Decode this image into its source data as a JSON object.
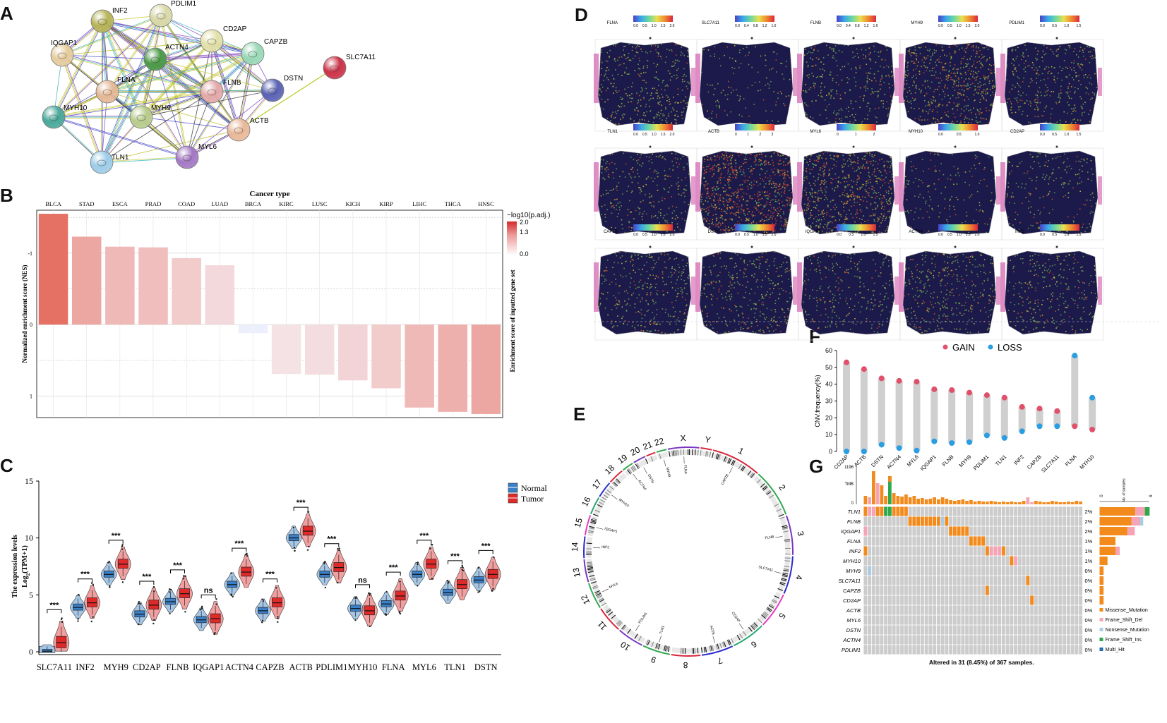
{
  "panels": {
    "A": "A",
    "B": "B",
    "C": "C",
    "D": "D",
    "E": "E",
    "F": "F",
    "G": "G"
  },
  "panel_a": {
    "nodes": [
      {
        "id": "INF2",
        "color": "#b8b45a"
      },
      {
        "id": "PDLIM1",
        "color": "#d8d8a8"
      },
      {
        "id": "CD2AP",
        "color": "#e2e0a8"
      },
      {
        "id": "IQGAP1",
        "color": "#e6cc9e"
      },
      {
        "id": "ACTN4",
        "color": "#4c9a48"
      },
      {
        "id": "CAPZB",
        "color": "#9ad8b8"
      },
      {
        "id": "SLC7A11",
        "color": "#cc3348"
      },
      {
        "id": "FLNA",
        "color": "#e4b896"
      },
      {
        "id": "FLNB",
        "color": "#e4a8a8"
      },
      {
        "id": "DSTN",
        "color": "#5a62b4"
      },
      {
        "id": "MYH10",
        "color": "#4aa89a"
      },
      {
        "id": "MYH9",
        "color": "#b8cc8c"
      },
      {
        "id": "ACTB",
        "color": "#e8b898"
      },
      {
        "id": "MYL6",
        "color": "#a478c4"
      },
      {
        "id": "TLN1",
        "color": "#9ccce8"
      }
    ]
  },
  "chart_data": [
    {
      "panel": "B",
      "type": "bar",
      "title": "Cancer type",
      "ylabel": "Normalized  enrichment score (NES)",
      "right_label": "Enrichment score of inputted gene set",
      "legend_title": "−log10(p.adj.)",
      "legend_ticks": [
        "2.0",
        "1.3",
        "0.0"
      ],
      "categories": [
        "BLCA",
        "STAD",
        "ESCA",
        "PRAD",
        "COAD",
        "LUAD",
        "BRCA",
        "KIRC",
        "LUSC",
        "KICH",
        "KIRP",
        "LIHC",
        "THCA",
        "HNSC"
      ],
      "values": [
        -1.55,
        -1.23,
        -1.09,
        -1.08,
        -0.93,
        -0.83,
        0.12,
        0.69,
        0.7,
        0.78,
        0.89,
        1.16,
        1.22,
        1.25
      ],
      "color_values": [
        1.5,
        0.9,
        0.7,
        0.65,
        0.5,
        0.35,
        0.05,
        0.25,
        0.3,
        0.4,
        0.5,
        0.7,
        0.8,
        0.9
      ],
      "ytick_labels": [
        "-1",
        "0",
        "1"
      ],
      "ytick_values": [
        -1,
        0,
        1
      ],
      "ylim": [
        -1.6,
        1.3
      ]
    },
    {
      "panel": "C",
      "type": "violin-box",
      "ylabel": "The expression levels",
      "ylabel2": "Log",
      "ylabel2_sub": "2",
      "ylabel2_tail": "(TPM+1)",
      "legend": [
        "Normal",
        "Tumor"
      ],
      "colors": {
        "normal": "#3a80c8",
        "tumor": "#e02a2a"
      },
      "categories": [
        "SLC7A11",
        "INF2",
        "MYH9",
        "CD2AP",
        "FLNB",
        "IQGAP1",
        "ACTN4",
        "CAPZB",
        "ACTB",
        "PDLIM1",
        "MYH10",
        "FLNA",
        "MYL6",
        "TLN1",
        "DSTN"
      ],
      "normal_median": [
        0.05,
        3.9,
        6.8,
        3.3,
        4.4,
        2.8,
        5.9,
        3.6,
        10.0,
        6.8,
        3.8,
        4.2,
        6.8,
        5.2,
        6.3
      ],
      "tumor_median": [
        0.8,
        4.3,
        7.7,
        4.1,
        5.1,
        2.9,
        7.0,
        4.3,
        10.6,
        7.4,
        3.6,
        4.9,
        7.7,
        5.9,
        6.8
      ],
      "significance": [
        "***",
        "***",
        "***",
        "***",
        "***",
        "ns",
        "***",
        "***",
        "***",
        "***",
        "ns",
        "***",
        "***",
        "***",
        "***"
      ],
      "yticks": [
        0,
        5,
        10,
        15
      ],
      "ylim": [
        0,
        15
      ]
    },
    {
      "panel": "F",
      "type": "dot-range",
      "ylabel": "CNV.frequency(%)",
      "legend": [
        "GAIN",
        "LOSS"
      ],
      "colors": {
        "gain": "#e0506a",
        "loss": "#2a9ee0"
      },
      "categories": [
        "CD2AP",
        "ACTB",
        "DSTN",
        "ACTN4",
        "MYL6",
        "IQGAP1",
        "FLNB",
        "MYH9",
        "PDLIM1",
        "TLN1",
        "INF2",
        "CAPZB",
        "SLC7A11",
        "FLNA",
        "MYH10"
      ],
      "gain": [
        53,
        49,
        43.5,
        42,
        41.5,
        37,
        36.5,
        35,
        33.5,
        32,
        26.5,
        25.5,
        24,
        15,
        13
      ],
      "loss": [
        0,
        0,
        4,
        2,
        0.5,
        6,
        5,
        5.5,
        9.5,
        8,
        12,
        15,
        15,
        57,
        32
      ],
      "yticks": [
        0,
        10,
        20,
        30,
        40,
        50,
        60
      ],
      "ylim": [
        0,
        60
      ]
    }
  ],
  "panel_d": {
    "maps": [
      {
        "gene": "FLNA",
        "ticks": [
          "0.0",
          "0.5",
          "1.0",
          "1.5",
          "2.0"
        ],
        "level": 0.35
      },
      {
        "gene": "SLC7A11",
        "ticks": [
          "0.0",
          "0.4",
          "0.8",
          "1.2",
          "1.6"
        ],
        "level": 0.03
      },
      {
        "gene": "FLNB",
        "ticks": [
          "0.0",
          "0.4",
          "0.8",
          "1.2",
          "1.6"
        ],
        "level": 0.25
      },
      {
        "gene": "MYH9",
        "ticks": [
          "0.0",
          "0.5",
          "1.0",
          "1.5",
          "2.0"
        ],
        "level": 0.55
      },
      {
        "gene": "PDLIM1",
        "ticks": [
          "0.0",
          "0.5",
          "1.0",
          "1.5"
        ],
        "level": 0.3
      },
      {
        "gene": "TLN1",
        "ticks": [
          "0.0",
          "0.5",
          "1.0",
          "1.5",
          "2.0"
        ],
        "level": 0.22
      },
      {
        "gene": "ACTB",
        "ticks": [
          "0",
          "1",
          "2",
          "3"
        ],
        "level": 0.9
      },
      {
        "gene": "MYL6",
        "ticks": [
          "0",
          "1",
          "2"
        ],
        "level": 0.7
      },
      {
        "gene": "MYH10",
        "ticks": [
          "0.0",
          "0.5",
          "1.0"
        ],
        "level": 0.06
      },
      {
        "gene": "CD2AP",
        "ticks": [
          "0.0",
          "0.5",
          "1.0",
          "1.5"
        ],
        "level": 0.12
      },
      {
        "gene": "CAPZB",
        "ticks": [
          "0.0",
          "0.5",
          "1.0",
          "1.5",
          "2.0"
        ],
        "level": 0.28
      },
      {
        "gene": "DSTN",
        "ticks": [
          "0.0",
          "0.5",
          "1.0",
          "1.5",
          "2.0"
        ],
        "level": 0.3
      },
      {
        "gene": "IQGAP1",
        "ticks": [
          "0.0",
          "0.5",
          "1.0",
          "1.5"
        ],
        "level": 0.2
      },
      {
        "gene": "ACTN4",
        "ticks": [
          "0.0",
          "0.5",
          "1.0",
          "1.5",
          "2.0"
        ],
        "level": 0.32
      },
      {
        "gene": "INF2",
        "ticks": [
          "0.0",
          "0.5",
          "1.0",
          "1.5"
        ],
        "level": 0.22
      }
    ]
  },
  "panel_e": {
    "chromosomes": [
      "1",
      "2",
      "3",
      "4",
      "5",
      "6",
      "7",
      "8",
      "9",
      "10",
      "11",
      "12",
      "13",
      "14",
      "15",
      "16",
      "17",
      "18",
      "19",
      "20",
      "21",
      "22",
      "X",
      "Y"
    ],
    "genes": [
      {
        "name": "CAPZB",
        "chr": "1"
      },
      {
        "name": "FLNB",
        "chr": "3"
      },
      {
        "name": "SLC7A11",
        "chr": "4"
      },
      {
        "name": "CD2AP",
        "chr": "6"
      },
      {
        "name": "ACTB",
        "chr": "7"
      },
      {
        "name": "TLN1",
        "chr": "9"
      },
      {
        "name": "PDLIM1",
        "chr": "10"
      },
      {
        "name": "MYL6",
        "chr": "12"
      },
      {
        "name": "INF2",
        "chr": "14"
      },
      {
        "name": "IQGAP1",
        "chr": "15"
      },
      {
        "name": "MYH10",
        "chr": "17"
      },
      {
        "name": "DSTN",
        "chr": "20"
      },
      {
        "name": "ACTN4",
        "chr": "19"
      },
      {
        "name": "MYH9",
        "chr": "22"
      },
      {
        "name": "FLNA",
        "chr": "X"
      }
    ]
  },
  "panel_g": {
    "tmb_label": "TMB",
    "tmb_max": "1196",
    "tmb_zero": "0",
    "genes": [
      "TLN1",
      "FLNB",
      "IQGAP1",
      "FLNA",
      "INF2",
      "MYH10",
      "MYH9",
      "SLC7A11",
      "CAPZB",
      "CD2AP",
      "ACTB",
      "MYL6",
      "DSTN",
      "ACTN4",
      "PDLIM1"
    ],
    "percents": [
      "2%",
      "2%",
      "2%",
      "1%",
      "1%",
      "1%",
      "0%",
      "0%",
      "0%",
      "0%",
      "0%",
      "0%",
      "0%",
      "0%",
      "0%"
    ],
    "side_counts": [
      9,
      8,
      7,
      4,
      4,
      2,
      1,
      1,
      1,
      1,
      0,
      0,
      0,
      0,
      0
    ],
    "side_axis_min": "0",
    "side_axis_max": "9",
    "side_axis_label": "No. of samples",
    "legend": [
      {
        "label": "Missense_Mutation",
        "color": "#f28a1c"
      },
      {
        "label": "Frame_Shift_Del",
        "color": "#f4a4b4"
      },
      {
        "label": "Nonsense_Mutation",
        "color": "#a8cce4"
      },
      {
        "label": "Frame_Shift_Ins",
        "color": "#2ea84a"
      },
      {
        "label": "Multi_Hit",
        "color": "#1f6fb4"
      }
    ],
    "footer": "Altered in 31 (8.45%) of 367 samples."
  }
}
